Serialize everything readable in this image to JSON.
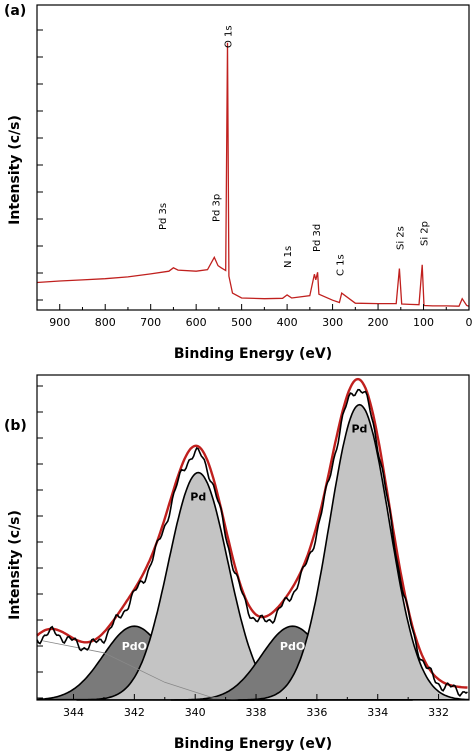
{
  "chart_data": [
    {
      "type": "line",
      "panel_label": "(a)",
      "xlabel": "Binding Energy (eV)",
      "ylabel": "Intensity (c/s)",
      "xlim": [
        950,
        0
      ],
      "x_reversed": true,
      "x_ticks": [
        "900",
        "800",
        "700",
        "600",
        "500",
        "400",
        "300",
        "200",
        "100",
        "0"
      ],
      "y_tick_labels_shown": false,
      "line_color": "#c0201e",
      "series": [
        {
          "x": [
            950,
            900,
            850,
            800,
            750,
            700,
            660,
            650,
            640,
            600,
            575,
            560,
            552,
            545,
            535,
            531,
            528,
            520,
            500,
            450,
            410,
            400,
            390,
            350,
            340,
            337,
            333,
            330,
            300,
            285,
            280,
            250,
            200,
            160,
            153,
            148,
            130,
            110,
            103,
            99,
            80,
            50,
            22,
            15,
            5,
            0
          ],
          "y": [
            0.63,
            0.67,
            0.7,
            0.73,
            0.78,
            0.86,
            0.93,
            1.02,
            0.96,
            0.93,
            0.97,
            1.3,
            1.08,
            1.02,
            0.95,
            7.0,
            0.8,
            0.35,
            0.22,
            0.2,
            0.21,
            0.3,
            0.22,
            0.28,
            0.85,
            0.7,
            0.9,
            0.32,
            0.16,
            0.1,
            0.35,
            0.08,
            0.07,
            0.07,
            1.0,
            0.06,
            0.05,
            0.04,
            1.1,
            0.02,
            0.01,
            0.01,
            0.0,
            0.2,
            0.02,
            0.0
          ]
        }
      ],
      "annotations": [
        {
          "text": "O 1s",
          "x": 531
        },
        {
          "text": "Pd 3s",
          "x": 675
        },
        {
          "text": "Pd 3p",
          "x": 557
        },
        {
          "text": "N 1s",
          "x": 400
        },
        {
          "text": "Pd 3d",
          "x": 336
        },
        {
          "text": "C 1s",
          "x": 285
        },
        {
          "text": "Si 2s",
          "x": 153
        },
        {
          "text": "Si 2p",
          "x": 100
        }
      ]
    },
    {
      "type": "area",
      "panel_label": "(b)",
      "xlabel": "Binding Energy (eV)",
      "ylabel": "Intensity (c/s)",
      "xlim": [
        345.2,
        331
      ],
      "x_reversed": true,
      "x_ticks": [
        "344",
        "342",
        "340",
        "338",
        "336",
        "334",
        "332"
      ],
      "y_tick_labels_shown": false,
      "peaks": [
        {
          "label": "PdO",
          "center": 342.0,
          "fwhm": 2.4,
          "height": 1.25,
          "fill": "#7a7a7a",
          "label_color": "#ffffff"
        },
        {
          "label": "Pd",
          "center": 339.9,
          "fwhm": 2.3,
          "height": 3.85,
          "fill": "#c4c4c4",
          "label_color": "#000000"
        },
        {
          "label": "PdO",
          "center": 336.8,
          "fwhm": 2.4,
          "height": 1.25,
          "fill": "#7a7a7a",
          "label_color": "#ffffff"
        },
        {
          "label": "Pd",
          "center": 334.6,
          "fwhm": 2.3,
          "height": 5.0,
          "fill": "#c4c4c4",
          "label_color": "#000000"
        }
      ],
      "background_line": {
        "color": "#888888",
        "x": [
          345,
          343,
          341,
          339.5,
          338.5
        ],
        "y": [
          1.0,
          0.8,
          0.3,
          0.05,
          0.0
        ]
      },
      "fit_envelope_color": "#000000",
      "experimental_color": "#c0201e"
    }
  ]
}
